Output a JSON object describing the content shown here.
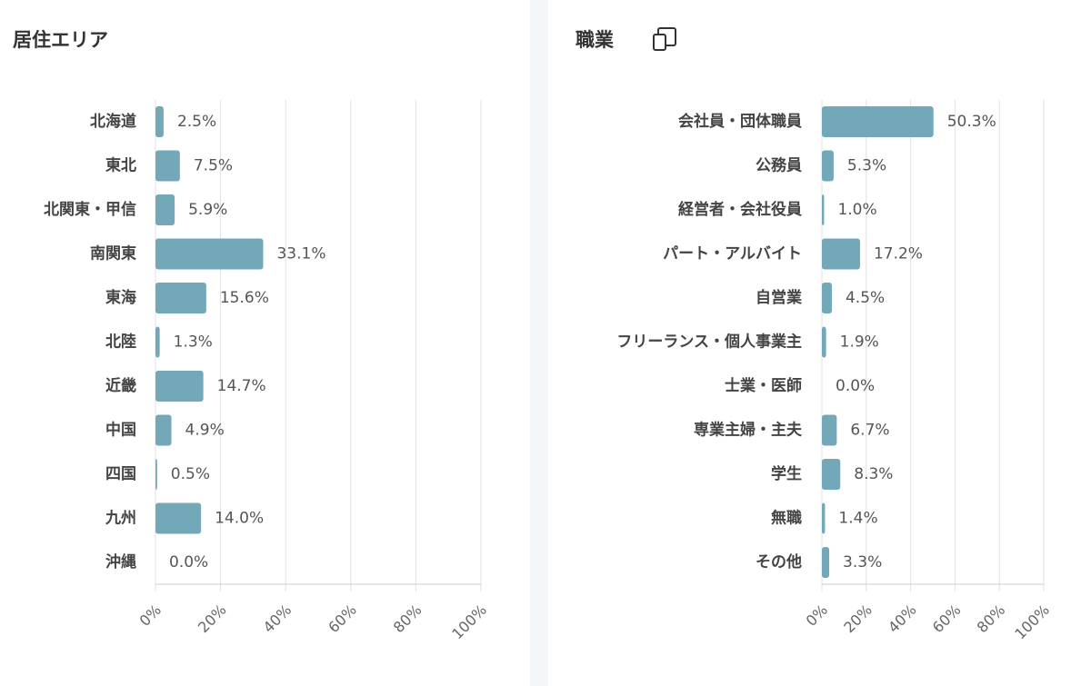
{
  "chart_data": [
    {
      "type": "bar",
      "title": "居住エリア",
      "categories": [
        "北海道",
        "東北",
        "北関東・甲信",
        "南関東",
        "東海",
        "北陸",
        "近畿",
        "中国",
        "四国",
        "九州",
        "沖縄"
      ],
      "values": [
        2.5,
        7.5,
        5.9,
        33.1,
        15.6,
        1.3,
        14.7,
        4.9,
        0.5,
        14.0,
        0.0
      ],
      "value_labels": [
        "2.5%",
        "7.5%",
        "5.9%",
        "33.1%",
        "15.6%",
        "1.3%",
        "14.7%",
        "4.9%",
        "0.5%",
        "14.0%",
        "0.0%"
      ],
      "color": "#72a8b8",
      "xlim": [
        0,
        100
      ],
      "xticks": [
        {
          "value": 0,
          "label": "0%"
        },
        {
          "value": 20,
          "label": "20%"
        },
        {
          "value": 40,
          "label": "40%"
        },
        {
          "value": 60,
          "label": "60%"
        },
        {
          "value": 80,
          "label": "80%"
        },
        {
          "value": 100,
          "label": "100%"
        }
      ],
      "grid": true
    },
    {
      "type": "bar",
      "title": "職業",
      "categories": [
        "会社員・団体職員",
        "公務員",
        "経営者・会社役員",
        "パート・アルバイト",
        "自営業",
        "フリーランス・個人事業主",
        "士業・医師",
        "専業主婦・主夫",
        "学生",
        "無職",
        "その他"
      ],
      "values": [
        50.3,
        5.3,
        1.0,
        17.2,
        4.5,
        1.9,
        0.0,
        6.7,
        8.3,
        1.4,
        3.3
      ],
      "value_labels": [
        "50.3%",
        "5.3%",
        "1.0%",
        "17.2%",
        "4.5%",
        "1.9%",
        "0.0%",
        "6.7%",
        "8.3%",
        "1.4%",
        "3.3%"
      ],
      "color": "#72a8b8",
      "xlim": [
        0,
        100
      ],
      "xticks": [
        {
          "value": 0,
          "label": "0%"
        },
        {
          "value": 20,
          "label": "20%"
        },
        {
          "value": 40,
          "label": "40%"
        },
        {
          "value": 60,
          "label": "60%"
        },
        {
          "value": 80,
          "label": "80%"
        },
        {
          "value": 100,
          "label": "100%"
        }
      ],
      "grid": true
    }
  ]
}
